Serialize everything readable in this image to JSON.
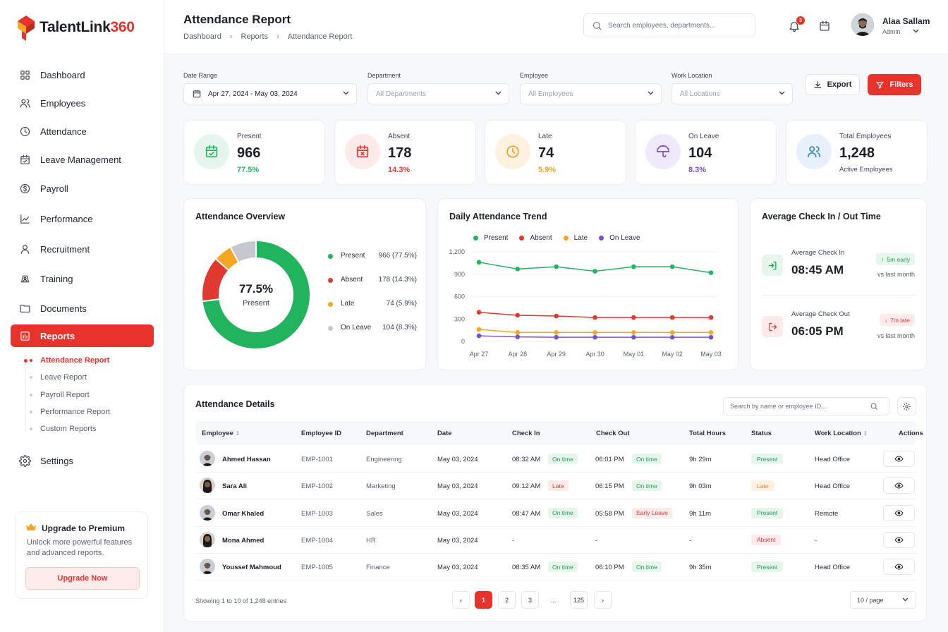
{
  "brand": {
    "name": "TalentLink",
    "num": "360"
  },
  "sidebar": {
    "items": [
      {
        "label": "Dashboard",
        "icon": "grid-icon"
      },
      {
        "label": "Employees",
        "icon": "users-icon"
      },
      {
        "label": "Attendance",
        "icon": "clock-icon"
      },
      {
        "label": "Leave Management",
        "icon": "calendar-check-icon"
      },
      {
        "label": "Payroll",
        "icon": "dollar-icon"
      },
      {
        "label": "Performance",
        "icon": "chart-line-icon"
      },
      {
        "label": "Recruitment",
        "icon": "user-icon"
      },
      {
        "label": "Training",
        "icon": "training-icon"
      },
      {
        "label": "Documents",
        "icon": "folder-icon"
      },
      {
        "label": "Reports",
        "icon": "bar-chart-icon"
      },
      {
        "label": "Settings",
        "icon": "gear-icon"
      }
    ],
    "reports_sub": [
      "Attendance Report",
      "Leave Report",
      "Payroll Report",
      "Performance Report",
      "Custom Reports"
    ],
    "upgrade": {
      "title": "Upgrade to Premium",
      "desc": "Unlock more powerful features and advanced reports.",
      "button": "Upgrade Now"
    }
  },
  "header": {
    "title": "Attendance Report",
    "breadcrumb": [
      "Dashboard",
      "Reports",
      "Attendance Report"
    ],
    "search_placeholder": "Search employees, departments...",
    "notifications": "3",
    "user": {
      "name": "Alaa Sallam",
      "role": "Admin"
    }
  },
  "filters": {
    "date_range": {
      "label": "Date Range",
      "value": "Apr 27, 2024 - May 03, 2024"
    },
    "department": {
      "label": "Department",
      "value": "All Departments"
    },
    "employee": {
      "label": "Employee",
      "value": "All Employees"
    },
    "location": {
      "label": "Work Location",
      "value": "All Locations"
    },
    "export": "Export",
    "filters": "Filters"
  },
  "stats": [
    {
      "label": "Present",
      "value": "966",
      "pct": "77.5%",
      "color": "#22b35e",
      "bg": "#e6f6ec"
    },
    {
      "label": "Absent",
      "value": "178",
      "pct": "14.3%",
      "color": "#e0392f",
      "bg": "#fdeaea"
    },
    {
      "label": "Late",
      "value": "74",
      "pct": "5.9%",
      "color": "#f0a020",
      "bg": "#fdf1df"
    },
    {
      "label": "On Leave",
      "value": "104",
      "pct": "8.3%",
      "color": "#7a4fd6",
      "bg": "#efe9fb"
    },
    {
      "label": "Total Employees",
      "value": "1,248",
      "sub": "Active Employees",
      "color": "#3b82d6",
      "bg": "#e7f0fb"
    }
  ],
  "overview": {
    "title": "Attendance Overview",
    "center_value": "77.5%",
    "center_label": "Present",
    "legend": [
      {
        "name": "Present",
        "value": "966 (77.5%)",
        "color": "#22b35e"
      },
      {
        "name": "Absent",
        "value": "178 (14.3%)",
        "color": "#e0392f"
      },
      {
        "name": "Late",
        "value": "74 (5.9%)",
        "color": "#f5a623"
      },
      {
        "name": "On Leave",
        "value": "104 (8.3%)",
        "color": "#c5c8ce"
      }
    ]
  },
  "chart_data": {
    "type": "line",
    "title": "Daily Attendance Trend",
    "x": [
      "Apr 27",
      "Apr 28",
      "Apr 29",
      "Apr 30",
      "May 01",
      "May 02",
      "May 03"
    ],
    "yticks": [
      "0",
      "300",
      "600",
      "900",
      "1,200"
    ],
    "ylim": [
      0,
      1200
    ],
    "legend_position": "top",
    "series": [
      {
        "name": "Present",
        "color": "#22b35e",
        "values": [
          1060,
          970,
          1000,
          940,
          1000,
          1000,
          920
        ]
      },
      {
        "name": "Absent",
        "color": "#e0392f",
        "values": [
          390,
          350,
          340,
          320,
          320,
          320,
          320
        ]
      },
      {
        "name": "Late",
        "color": "#f5a623",
        "values": [
          160,
          120,
          120,
          120,
          120,
          120,
          120
        ]
      },
      {
        "name": "On Leave",
        "color": "#7a4fd6",
        "values": [
          75,
          60,
          55,
          55,
          55,
          55,
          55
        ]
      }
    ]
  },
  "checkinout": {
    "title": "Average Check In / Out Time",
    "in": {
      "label": "Average Check In",
      "time": "08:45 AM",
      "pill": "5m early",
      "vs": "vs last month"
    },
    "out": {
      "label": "Average Check Out",
      "time": "06:05 PM",
      "pill": "7m late",
      "vs": "vs last month"
    }
  },
  "table": {
    "title": "Attendance Details",
    "search_placeholder": "Search by name or employee ID...",
    "headers": [
      "Employee",
      "Employee ID",
      "Department",
      "Date",
      "Check In",
      "Check Out",
      "Total Hours",
      "Status",
      "Work Location",
      "Actions"
    ],
    "rows": [
      {
        "name": "Ahmed Hassan",
        "id": "EMP-1001",
        "dept": "Engineering",
        "date": "May 03, 2024",
        "in": "08:32 AM",
        "in_tag": "On time",
        "in_tone": "green",
        "out": "06:01 PM",
        "out_tag": "On time",
        "out_tone": "green",
        "hours": "9h 29m",
        "status": "Present",
        "status_tone": "green",
        "loc": "Head Office"
      },
      {
        "name": "Sara Ali",
        "id": "EMP-1002",
        "dept": "Marketing",
        "date": "May 03, 2024",
        "in": "09:12 AM",
        "in_tag": "Late",
        "in_tone": "red",
        "out": "06:15 PM",
        "out_tag": "On time",
        "out_tone": "green",
        "hours": "9h 03m",
        "status": "Late",
        "status_tone": "orange",
        "loc": "Head Office"
      },
      {
        "name": "Omar Khaled",
        "id": "EMP-1003",
        "dept": "Sales",
        "date": "May 03, 2024",
        "in": "08:47 AM",
        "in_tag": "On time",
        "in_tone": "green",
        "out": "05:58 PM",
        "out_tag": "Early Leave",
        "out_tone": "red",
        "hours": "9h 11m",
        "status": "Present",
        "status_tone": "green",
        "loc": "Remote"
      },
      {
        "name": "Mona Ahmed",
        "id": "EMP-1004",
        "dept": "HR",
        "date": "May 03, 2024",
        "in": "-",
        "in_tag": "",
        "in_tone": "",
        "out": "-",
        "out_tag": "",
        "out_tone": "",
        "hours": "-",
        "status": "Absent",
        "status_tone": "red",
        "loc": "-"
      },
      {
        "name": "Youssef Mahmoud",
        "id": "EMP-1005",
        "dept": "Finance",
        "date": "May 03, 2024",
        "in": "08:35 AM",
        "in_tag": "On time",
        "in_tone": "green",
        "out": "06:10 PM",
        "out_tag": "On time",
        "out_tone": "green",
        "hours": "9h 35m",
        "status": "Present",
        "status_tone": "green",
        "loc": "Head Office"
      }
    ],
    "showing": "Showing 1 to 10 of 1,248 entries",
    "pages": [
      "1",
      "2",
      "3",
      "...",
      "125"
    ],
    "per_page": "10 / page"
  }
}
